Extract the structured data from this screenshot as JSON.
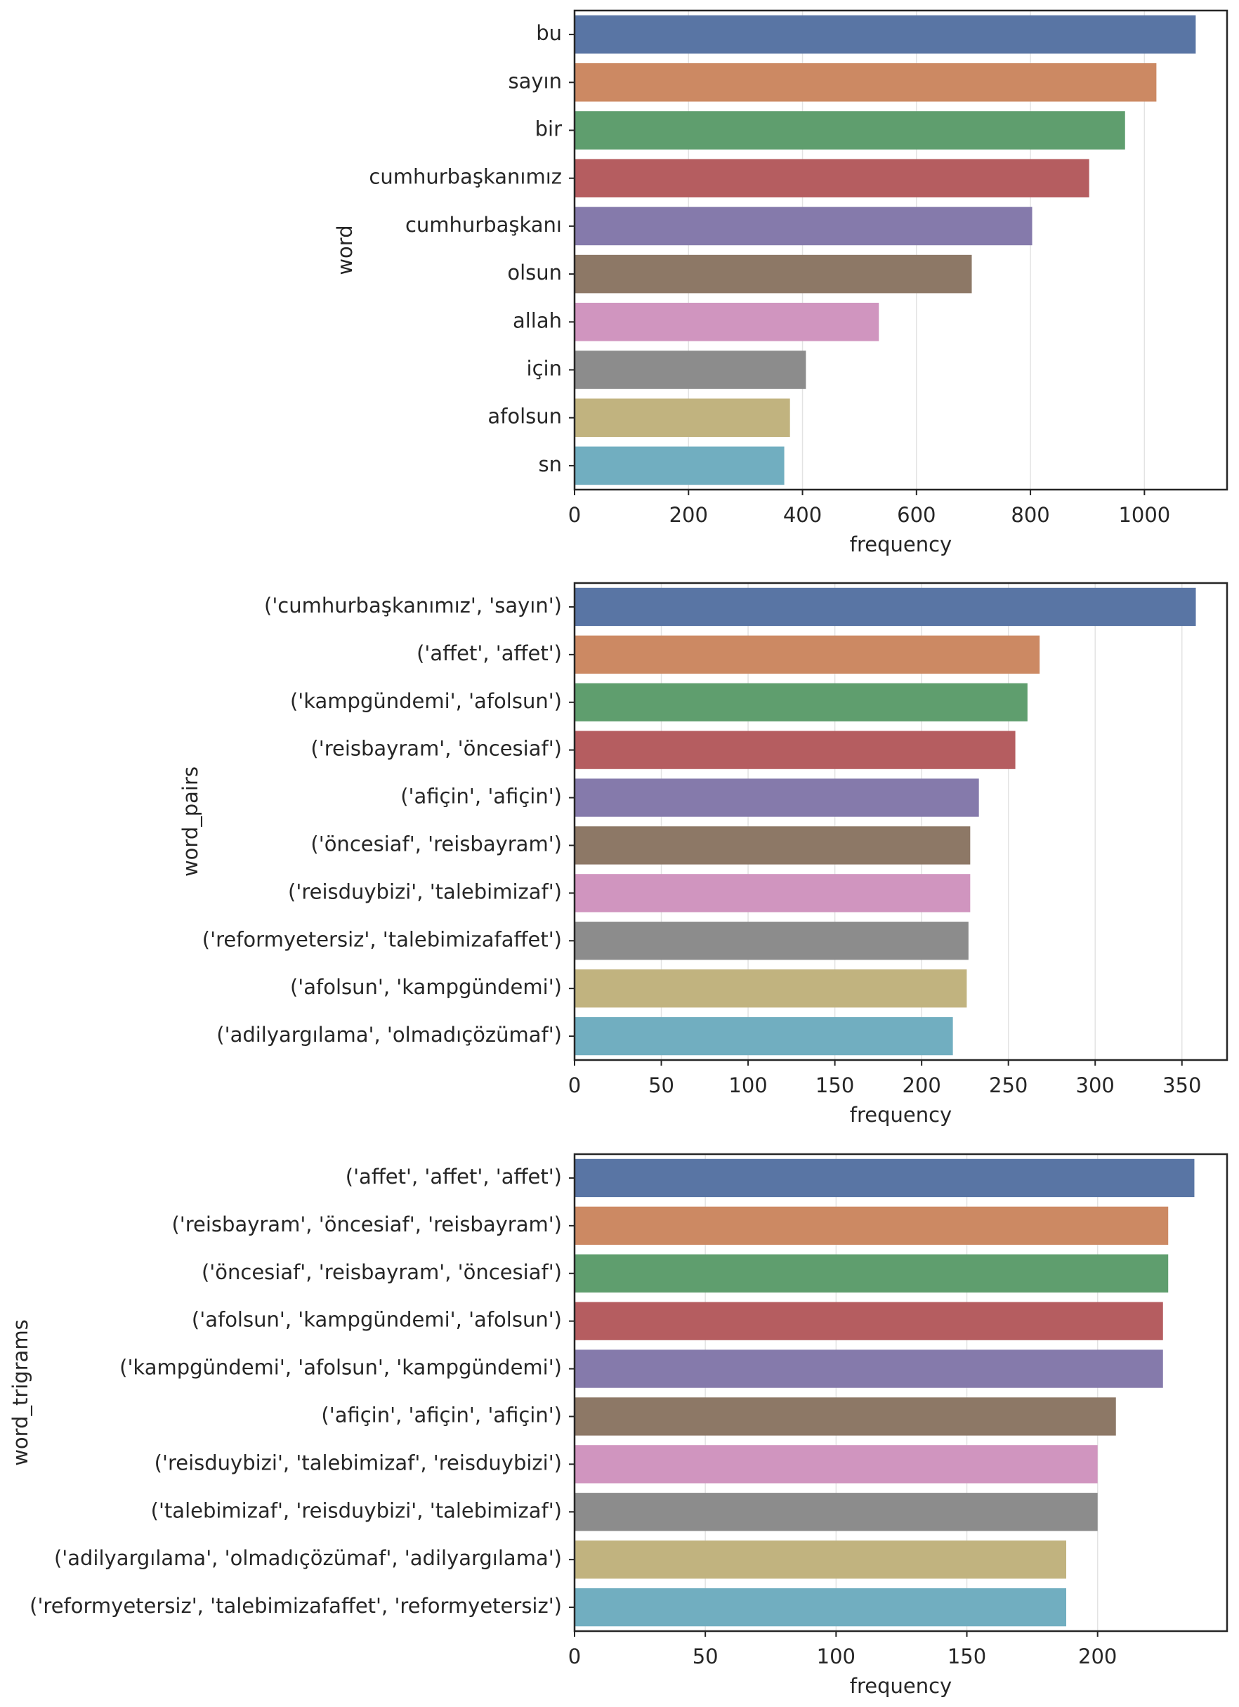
{
  "chart_data": [
    {
      "type": "barh",
      "xlabel": "frequency",
      "ylabel": "word",
      "categories": [
        "bu",
        "sayın",
        "bir",
        "cumhurbaşkanımız",
        "cumhurbaşkanı",
        "olsun",
        "allah",
        "için",
        "afolsun",
        "sn"
      ],
      "values": [
        1090,
        1021,
        966,
        903,
        803,
        697,
        534,
        406,
        378,
        368
      ],
      "colors": [
        "#5975a4",
        "#cc8963",
        "#5f9e6e",
        "#b55d60",
        "#857aab",
        "#8d7866",
        "#d095bf",
        "#8c8c8c",
        "#c1b37f",
        "#71aec0"
      ],
      "xlim": [
        0,
        1145
      ],
      "xticks": [
        0,
        200,
        400,
        600,
        800,
        1000
      ],
      "grid": true
    },
    {
      "type": "barh",
      "xlabel": "frequency",
      "ylabel": "word_pairs",
      "categories": [
        "('cumhurbaşkanımız', 'sayın')",
        "('affet', 'affet')",
        "('kampgündemi', 'afolsun')",
        "('reisbayram', 'öncesiaf')",
        "('afiçin', 'afiçin')",
        "('öncesiaf', 'reisbayram')",
        "('reisduybizi', 'talebimizaf')",
        "('reformyetersiz', 'talebimizafaffet')",
        "('afolsun', 'kampgündemi')",
        "('adilyargılama', 'olmadıçözümaf')"
      ],
      "values": [
        358,
        268,
        261,
        254,
        233,
        228,
        228,
        227,
        226,
        218
      ],
      "colors": [
        "#5975a4",
        "#cc8963",
        "#5f9e6e",
        "#b55d60",
        "#857aab",
        "#8d7866",
        "#d095bf",
        "#8c8c8c",
        "#c1b37f",
        "#71aec0"
      ],
      "xlim": [
        0,
        376
      ],
      "xticks": [
        0,
        50,
        100,
        150,
        200,
        250,
        300,
        350
      ],
      "grid": true
    },
    {
      "type": "barh",
      "xlabel": "frequency",
      "ylabel": "word_trigrams",
      "categories": [
        "('affet', 'affet', 'affet')",
        "('reisbayram', 'öncesiaf', 'reisbayram')",
        "('öncesiaf', 'reisbayram', 'öncesiaf')",
        "('afolsun', 'kampgündemi', 'afolsun')",
        "('kampgündemi', 'afolsun', 'kampgündemi')",
        "('afiçin', 'afiçin', 'afiçin')",
        "('reisduybizi', 'talebimizaf', 'reisduybizi')",
        "('talebimizaf', 'reisduybizi', 'talebimizaf')",
        "('adilyargılama', 'olmadıçözümaf', 'adilyargılama')",
        "('reformyetersiz', 'talebimizafaffet', 'reformyetersiz')"
      ],
      "values": [
        237,
        227,
        227,
        225,
        225,
        207,
        200,
        200,
        188,
        188
      ],
      "colors": [
        "#5975a4",
        "#cc8963",
        "#5f9e6e",
        "#b55d60",
        "#857aab",
        "#8d7866",
        "#d095bf",
        "#8c8c8c",
        "#c1b37f",
        "#71aec0"
      ],
      "xlim": [
        0,
        249.5
      ],
      "xticks": [
        0,
        50,
        100,
        150,
        200
      ],
      "grid": true
    }
  ]
}
